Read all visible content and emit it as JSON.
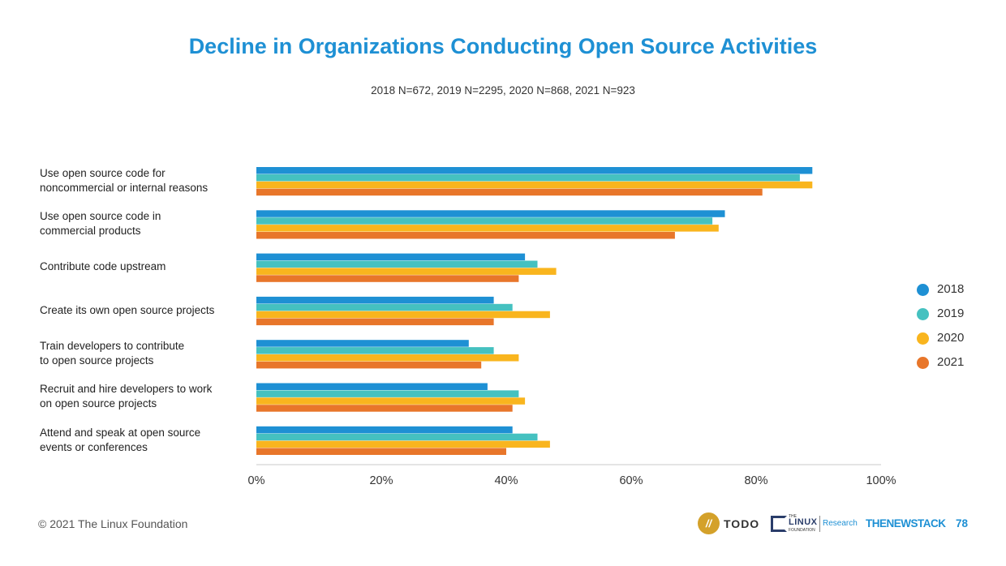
{
  "chart_data": {
    "type": "bar",
    "orientation": "horizontal",
    "title": "Decline in Organizations Conducting Open Source Activities",
    "subtitle": "2018 N=672, 2019 N=2295, 2020 N=868, 2021 N=923",
    "categories": [
      "Use open source code for\nnoncommercial or internal reasons",
      "Use open source code in\ncommercial products",
      "Contribute code upstream",
      "Create its own open source projects",
      "Train developers to contribute\nto open source projects",
      "Recruit and hire developers to work\non open source projects",
      "Attend and speak at open source\nevents or conferences"
    ],
    "series": [
      {
        "name": "2018",
        "color": "#1e90d4",
        "values": [
          89,
          75,
          43,
          38,
          34,
          37,
          41
        ]
      },
      {
        "name": "2019",
        "color": "#45c1c0",
        "values": [
          87,
          73,
          45,
          41,
          38,
          42,
          45
        ]
      },
      {
        "name": "2020",
        "color": "#f9b51e",
        "values": [
          89,
          74,
          48,
          47,
          42,
          43,
          47
        ]
      },
      {
        "name": "2021",
        "color": "#e8762a",
        "values": [
          81,
          67,
          42,
          38,
          36,
          41,
          40
        ]
      }
    ],
    "xlim": [
      0,
      100
    ],
    "xticks": [
      "0%",
      "20%",
      "40%",
      "60%",
      "80%",
      "100%"
    ],
    "legend_position": "right",
    "grid": false
  },
  "footer": {
    "copyright": "© 2021 The Linux Foundation",
    "logo_todo": "TODO",
    "logo_lf_the": "THE",
    "logo_lf_linux": "LINUX",
    "logo_lf_foundation": "FOUNDATION",
    "logo_lf_research": "Research",
    "logo_tns": "THENEWSTACK",
    "page_number": "78"
  }
}
